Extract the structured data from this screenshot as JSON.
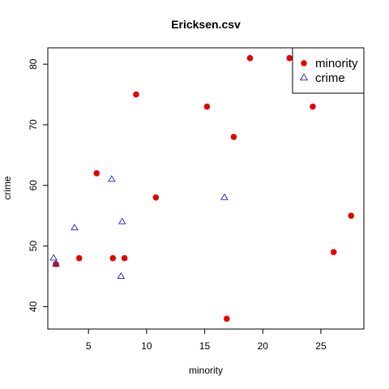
{
  "chart_data": {
    "type": "scatter",
    "title": "Ericksen.csv",
    "xlabel": "minority",
    "ylabel": "crime",
    "xlim": [
      1.5,
      28.7
    ],
    "ylim": [
      36.3,
      82.7
    ],
    "xticks": [
      5,
      10,
      15,
      20,
      25
    ],
    "yticks": [
      40,
      50,
      60,
      70,
      80
    ],
    "grid": false,
    "legend_position": "top-right",
    "series": [
      {
        "name": "minority",
        "marker": "filled-circle",
        "color": "#e60000",
        "points": [
          {
            "x": 2.2,
            "y": 47
          },
          {
            "x": 4.2,
            "y": 48
          },
          {
            "x": 5.7,
            "y": 62
          },
          {
            "x": 7.1,
            "y": 48
          },
          {
            "x": 8.1,
            "y": 48
          },
          {
            "x": 9.1,
            "y": 75
          },
          {
            "x": 10.8,
            "y": 58
          },
          {
            "x": 15.2,
            "y": 73
          },
          {
            "x": 16.9,
            "y": 38
          },
          {
            "x": 17.5,
            "y": 68
          },
          {
            "x": 18.9,
            "y": 81
          },
          {
            "x": 22.3,
            "y": 81
          },
          {
            "x": 24.3,
            "y": 73
          },
          {
            "x": 26.1,
            "y": 49
          },
          {
            "x": 27.6,
            "y": 55
          }
        ]
      },
      {
        "name": "crime",
        "marker": "open-triangle",
        "color": "#3333cc",
        "points": [
          {
            "x": 2.0,
            "y": 48
          },
          {
            "x": 2.2,
            "y": 47
          },
          {
            "x": 3.8,
            "y": 53
          },
          {
            "x": 7.0,
            "y": 61
          },
          {
            "x": 7.8,
            "y": 45
          },
          {
            "x": 7.9,
            "y": 54
          },
          {
            "x": 16.7,
            "y": 58
          }
        ]
      }
    ]
  }
}
